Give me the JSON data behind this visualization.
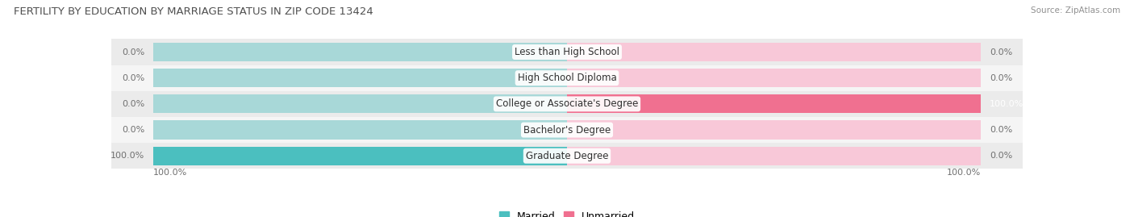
{
  "title": "FERTILITY BY EDUCATION BY MARRIAGE STATUS IN ZIP CODE 13424",
  "source": "Source: ZipAtlas.com",
  "categories": [
    "Less than High School",
    "High School Diploma",
    "College or Associate's Degree",
    "Bachelor's Degree",
    "Graduate Degree"
  ],
  "married": [
    0.0,
    0.0,
    0.0,
    0.0,
    100.0
  ],
  "unmarried": [
    0.0,
    0.0,
    100.0,
    0.0,
    0.0
  ],
  "married_color": "#4BBFBF",
  "unmarried_color": "#F07090",
  "married_color_light": "#88CCCC",
  "unmarried_color_light": "#F4A8BE",
  "bar_bg_married": "#A8D8D8",
  "bar_bg_unmarried": "#F8C8D8",
  "row_bg_even": "#EBEBEB",
  "row_bg_odd": "#F5F5F5",
  "title_color": "#505050",
  "source_color": "#909090",
  "label_color": "#303030",
  "value_color": "#707070",
  "max_val": 100.0,
  "figwidth": 14.06,
  "figheight": 2.69,
  "dpi": 100
}
